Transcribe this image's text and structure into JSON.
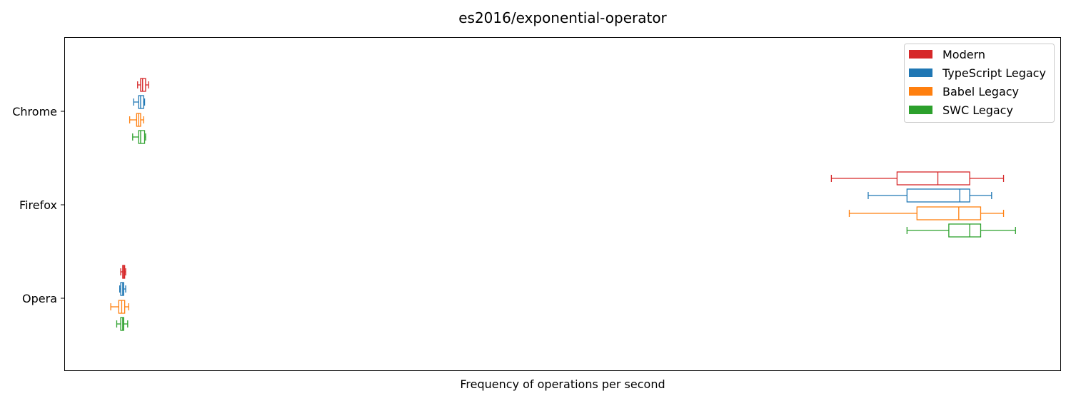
{
  "chart_data": {
    "type": "boxplot",
    "orientation": "horizontal",
    "title": "es2016/exponential-operator",
    "xlabel": "Frequency of operations per second",
    "ylabel": "",
    "x_ticks_visible": false,
    "xlim": [
      0,
      1000
    ],
    "grid": false,
    "legend_position": "top-right",
    "categories": [
      "Chrome",
      "Firefox",
      "Opera"
    ],
    "series": [
      {
        "name": "Modern",
        "color": "#d62728",
        "boxes": [
          {
            "whislo": 73,
            "q1": 76,
            "med": 78,
            "q3": 81,
            "whishi": 84
          },
          {
            "whislo": 770,
            "q1": 836,
            "med": 877,
            "q3": 909,
            "whishi": 943
          },
          {
            "whislo": 56,
            "q1": 58,
            "med": 59,
            "q3": 60,
            "whishi": 61
          }
        ]
      },
      {
        "name": "TypeScript Legacy",
        "color": "#1f77b4",
        "boxes": [
          {
            "whislo": 69,
            "q1": 74,
            "med": 76,
            "q3": 79,
            "whishi": 80
          },
          {
            "whislo": 807,
            "q1": 846,
            "med": 899,
            "q3": 909,
            "whishi": 931
          },
          {
            "whislo": 55,
            "q1": 56,
            "med": 58,
            "q3": 59,
            "whishi": 61
          }
        ]
      },
      {
        "name": "Babel Legacy",
        "color": "#ff7f0e",
        "boxes": [
          {
            "whislo": 65,
            "q1": 72,
            "med": 74,
            "q3": 76,
            "whishi": 79
          },
          {
            "whislo": 788,
            "q1": 856,
            "med": 898,
            "q3": 920,
            "whishi": 943
          },
          {
            "whislo": 46,
            "q1": 54,
            "med": 57,
            "q3": 60,
            "whishi": 64
          }
        ]
      },
      {
        "name": "SWC Legacy",
        "color": "#2ca02c",
        "boxes": [
          {
            "whislo": 68,
            "q1": 74,
            "med": 76,
            "q3": 80,
            "whishi": 81
          },
          {
            "whislo": 846,
            "q1": 888,
            "med": 909,
            "q3": 920,
            "whishi": 955
          },
          {
            "whislo": 52,
            "q1": 56,
            "med": 58,
            "q3": 59,
            "whishi": 63
          }
        ]
      }
    ]
  }
}
